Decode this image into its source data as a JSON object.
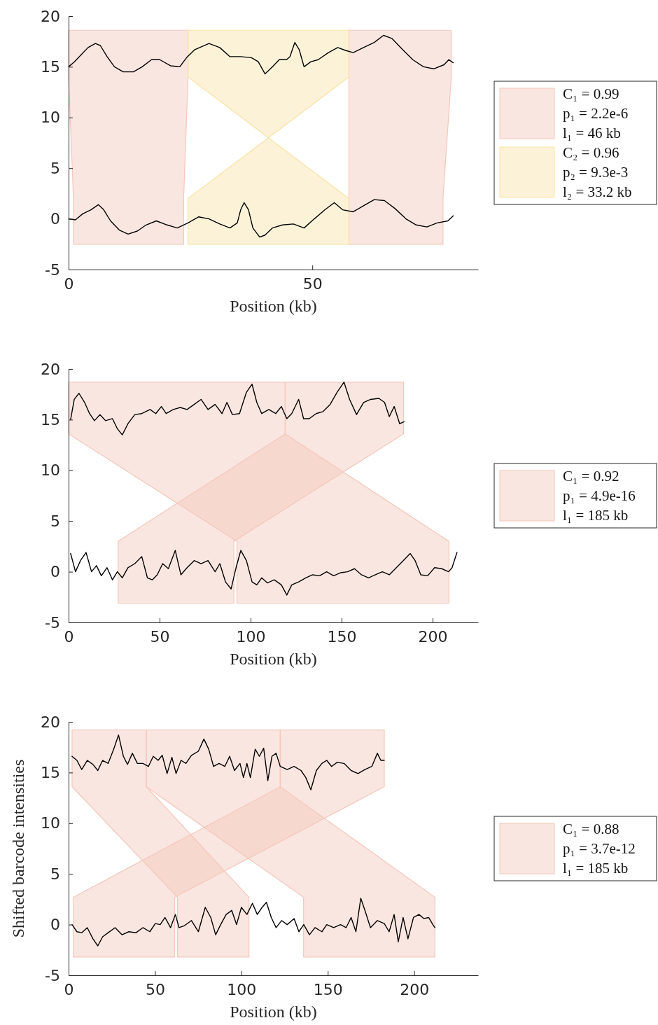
{
  "chart_data": [
    {
      "type": "line",
      "xlabel": "Position (kb)",
      "xlim": [
        0,
        84
      ],
      "xticks": [
        0,
        50
      ],
      "ylim": [
        -5,
        20
      ],
      "yticks": [
        -5,
        0,
        5,
        10,
        15,
        20
      ],
      "legend": "right",
      "series": [
        {
          "type": "area",
          "name": "C₁ = 0.99\np₁ = 2.2e-6\nl₁ = 46 kb",
          "color": "#f4c7bb",
          "x": [
            0,
            24.5,
            24.5,
            23.6,
            23.6,
            1,
            1,
            0
          ],
          "values": [
            18.6,
            18.6,
            14,
            2,
            -2.5,
            -2.5,
            2,
            14
          ]
        },
        {
          "type": "area",
          "color": "#f4c7bb",
          "x": [
            57.5,
            78.5,
            78.5,
            76.8,
            76.8,
            57.5,
            57.5,
            57.5
          ],
          "values": [
            18.6,
            18.6,
            14,
            2,
            -2.5,
            -2.5,
            2,
            14
          ]
        },
        {
          "type": "area",
          "name": "C₂ = 0.96\np₂ = 9.3e-3\nl₂ = 33.2 kb",
          "color": "#f9e3a6",
          "x": [
            24.5,
            57.5,
            57.5,
            24.5,
            24.5,
            57.5,
            57.5,
            24.5
          ],
          "values": [
            18.6,
            18.6,
            14,
            2,
            -2.5,
            -2.5,
            2,
            14
          ]
        },
        {
          "color": "#000000",
          "x": [
            0,
            1.2,
            2.6,
            4.0,
            5.5,
            6.5,
            7.9,
            9.4,
            11.2,
            13.3,
            15.1,
            17.0,
            18.7,
            20.9,
            22.8,
            24.2,
            25.9,
            28.8,
            31.0,
            33.1,
            35.3,
            37.5,
            38.9,
            40.3,
            41.8,
            43.2,
            44.7,
            45.4,
            46.4,
            47.3,
            48.3,
            49.7,
            51.2,
            53.3,
            55.2,
            56.9,
            58.4,
            60.5,
            62.7,
            64.6,
            66.3,
            68.5,
            70.6,
            72.8,
            74.9,
            77.0,
            78.0,
            78.9
          ],
          "values": [
            15.0,
            15.5,
            16.2,
            16.9,
            17.3,
            17.1,
            16.0,
            15.0,
            14.5,
            14.5,
            15.0,
            15.7,
            15.7,
            15.1,
            15.0,
            15.9,
            16.7,
            17.3,
            16.9,
            16.0,
            16.0,
            15.9,
            15.5,
            14.3,
            15.0,
            15.7,
            15.7,
            16.0,
            17.4,
            16.7,
            15.0,
            15.5,
            15.7,
            16.4,
            16.9,
            16.6,
            16.4,
            16.9,
            17.4,
            18.1,
            17.8,
            16.7,
            15.7,
            15.0,
            14.8,
            15.2,
            15.7,
            15.4
          ]
        },
        {
          "color": "#000000",
          "x": [
            0,
            1.4,
            2.9,
            4.6,
            6.1,
            7.2,
            8.6,
            10.4,
            12.2,
            14.1,
            15.9,
            18.0,
            20.2,
            22.3,
            24.5,
            26.7,
            28.8,
            31.0,
            33.1,
            34.6,
            35.3,
            36.0,
            36.9,
            37.8,
            39.2,
            40.3,
            41.8,
            43.9,
            46.1,
            48.3,
            50.4,
            52.6,
            54.5,
            56.2,
            58.4,
            60.5,
            62.7,
            64.8,
            67.0,
            69.2,
            71.3,
            73.5,
            75.6,
            77.8,
            78.9
          ],
          "values": [
            0,
            -0.1,
            0.5,
            0.9,
            1.4,
            0.9,
            -0.2,
            -1.1,
            -1.5,
            -1.2,
            -0.6,
            -0.2,
            -0.6,
            -0.9,
            -0.4,
            0.2,
            0,
            -0.5,
            -0.9,
            -0.4,
            0.9,
            1.6,
            0.9,
            -0.9,
            -1.8,
            -1.6,
            -0.9,
            -0.6,
            -0.5,
            -0.9,
            0,
            0.9,
            1.6,
            0.9,
            0.7,
            1.3,
            1.9,
            1.8,
            1.0,
            0,
            -0.6,
            -0.8,
            -0.4,
            -0.2,
            0.3
          ]
        }
      ]
    },
    {
      "type": "line",
      "xlabel": "Position (kb)",
      "xlim": [
        0,
        225
      ],
      "xticks": [
        0,
        50,
        100,
        150,
        200
      ],
      "ylim": [
        -5,
        20
      ],
      "yticks": [
        -5,
        0,
        5,
        10,
        15,
        20
      ],
      "legend": "right",
      "series": [
        {
          "type": "area",
          "name": "C₁ = 0.92\np₁ = 4.9e-16\nl₁ = 185 kb",
          "color": "#f4c7bb",
          "x": [
            0,
            119,
            119,
            209,
            209,
            92.5,
            92.5,
            0
          ],
          "values": [
            18.7,
            18.7,
            13.6,
            3,
            -3.1,
            -3.1,
            3,
            13.6
          ]
        },
        {
          "type": "area",
          "color": "#f4c7bb",
          "x": [
            119,
            184,
            184,
            90.8,
            90.8,
            27.2,
            27.2,
            119
          ],
          "values": [
            18.7,
            18.7,
            13.6,
            3,
            -3.1,
            -3.1,
            3,
            13.6
          ]
        },
        {
          "color": "#000000",
          "x": [
            1.1,
            3.1,
            5.7,
            8.8,
            11.5,
            14.2,
            17.2,
            20.3,
            24.1,
            26.8,
            29.5,
            32.6,
            36.4,
            40.2,
            44.8,
            47.9,
            51.0,
            53.6,
            57.5,
            61.3,
            65.1,
            69.0,
            72.8,
            76.6,
            80.5,
            84.3,
            87.0,
            90.0,
            93.9,
            97.7,
            100.8,
            103.4,
            106.1,
            110.0,
            113.8,
            116.9,
            119.9,
            122.6,
            126.4,
            129.1,
            132.2,
            136.0,
            139.8,
            143.7,
            147.5,
            151.3,
            154.4,
            158.2,
            162.1,
            165.9,
            170.5,
            173.6,
            176.2,
            178.9,
            181.9,
            184.3
          ],
          "values": [
            15,
            17.0,
            17.6,
            16.7,
            15.6,
            14.9,
            15.5,
            14.9,
            15.1,
            14.1,
            13.5,
            14.6,
            15.5,
            15.6,
            16.0,
            15.6,
            16.3,
            15.6,
            16.0,
            16.2,
            16.0,
            16.5,
            17.0,
            16.0,
            16.5,
            15.6,
            16.7,
            15.5,
            15.6,
            17.7,
            18.5,
            16.7,
            15.6,
            16.0,
            15.6,
            16.3,
            15.1,
            15.6,
            17.0,
            15.1,
            15.1,
            15.6,
            15.8,
            16.5,
            17.7,
            18.7,
            17.0,
            15.5,
            16.7,
            17.0,
            17.1,
            16.7,
            15.3,
            16.3,
            14.6,
            14.8
          ]
        },
        {
          "color": "#000000",
          "x": [
            1.1,
            3.8,
            6.5,
            9.6,
            12.6,
            15.3,
            18.0,
            21.1,
            24.1,
            26.8,
            29.5,
            32.6,
            36.4,
            40.2,
            43.3,
            46.0,
            48.7,
            51.7,
            54.8,
            58.6,
            61.7,
            65.1,
            69.0,
            72.8,
            76.6,
            80.5,
            83.1,
            86.2,
            89.3,
            92.0,
            94.6,
            97.7,
            100.8,
            103.4,
            106.1,
            109.2,
            113.0,
            116.9,
            119.9,
            122.6,
            126.4,
            130.3,
            134.1,
            137.9,
            141.8,
            145.6,
            149.4,
            153.3,
            157.1,
            160.9,
            164.8,
            168.6,
            172.4,
            176.2,
            180.1,
            183.9,
            187.7,
            190.4,
            193.5,
            197.3,
            201.1,
            205.0,
            208.8,
            210.7,
            213.4
          ],
          "values": [
            1.8,
            0,
            1.1,
            1.9,
            0,
            0.6,
            -0.4,
            0.4,
            -0.8,
            0,
            -0.6,
            0.4,
            0.8,
            1.5,
            -0.6,
            -0.8,
            -0.3,
            0.8,
            0.3,
            2.1,
            -0.3,
            0.4,
            1.1,
            0.8,
            1.1,
            0,
            0.8,
            -1.0,
            -1.7,
            0.4,
            2.1,
            1.1,
            -1.0,
            -1.3,
            -0.6,
            -1.1,
            -0.8,
            -1.3,
            -2.3,
            -1.3,
            -1.0,
            -0.6,
            -0.3,
            -0.4,
            0,
            -0.4,
            -0.1,
            0,
            0.3,
            -0.3,
            -0.6,
            -0.3,
            0,
            -0.3,
            0.4,
            1.1,
            1.8,
            1.1,
            -0.3,
            -0.4,
            0.4,
            0.3,
            0,
            0.4,
            1.9
          ]
        }
      ]
    },
    {
      "type": "line",
      "xlabel": "Position (kb)",
      "ylabel": "Shifted barcode intensities",
      "xlim": [
        0,
        237
      ],
      "xticks": [
        0,
        50,
        100,
        150,
        200
      ],
      "ylim": [
        -5,
        20
      ],
      "yticks": [
        -5,
        0,
        5,
        10,
        15,
        20
      ],
      "legend": "right",
      "series": [
        {
          "type": "area",
          "name": "C₁ = 0.88\np₁ = 3.7e-12\nl₁ = 185 kb",
          "color": "#f4c7bb",
          "x": [
            2,
            45,
            45,
            104.4,
            104.4,
            63,
            63,
            2
          ],
          "values": [
            19.2,
            19.2,
            13.6,
            2.7,
            -3.2,
            -3.2,
            2.7,
            13.6
          ]
        },
        {
          "type": "area",
          "color": "#f4c7bb",
          "x": [
            45,
            122.5,
            122.5,
            212,
            212,
            136,
            136,
            45
          ],
          "values": [
            19.2,
            19.2,
            13.6,
            2.7,
            -3.2,
            -3.2,
            2.7,
            13.6
          ]
        },
        {
          "type": "area",
          "color": "#f4c7bb",
          "x": [
            122.5,
            182.7,
            182.7,
            61.4,
            61.4,
            2.8,
            2.8,
            122.5
          ],
          "values": [
            19.2,
            19.2,
            13.6,
            2.7,
            -3.2,
            -3.2,
            2.7,
            13.6
          ]
        },
        {
          "color": "#000000",
          "x": [
            2.0,
            4.8,
            7.6,
            10.8,
            14.1,
            16.9,
            19.7,
            22.9,
            26.1,
            28.9,
            31.7,
            34.1,
            36.9,
            39.8,
            43.0,
            46.2,
            49.0,
            51.8,
            54.2,
            57.0,
            59.8,
            62.2,
            65.1,
            67.9,
            71.1,
            75.1,
            78.3,
            81.1,
            83.9,
            87.1,
            90.4,
            93.2,
            96.0,
            99.2,
            101.2,
            103.2,
            105.2,
            108.0,
            110.4,
            112.9,
            115.3,
            117.7,
            120.1,
            122.5,
            126.5,
            130.5,
            134.5,
            137.3,
            140.2,
            143.4,
            146.6,
            149.4,
            152.2,
            155.4,
            159.4,
            163.5,
            167.5,
            171.5,
            175.5,
            178.7,
            180.7,
            182.7
          ],
          "values": [
            16.6,
            16.2,
            15.3,
            16.2,
            15.8,
            15.2,
            16.2,
            15.9,
            17.3,
            18.7,
            16.6,
            15.8,
            16.9,
            15.9,
            15.9,
            15.6,
            16.6,
            16.2,
            16.7,
            14.9,
            16.5,
            14.9,
            16.2,
            15.9,
            16.7,
            17.1,
            18.3,
            17.3,
            15.6,
            15.9,
            15.6,
            16.6,
            15.2,
            15.9,
            14.5,
            15.9,
            14.5,
            17.3,
            16.6,
            17.4,
            14.2,
            16.6,
            16.9,
            15.6,
            15.3,
            15.6,
            15.2,
            14.5,
            13.3,
            15.2,
            15.9,
            16.2,
            15.6,
            16.0,
            15.9,
            15.2,
            14.9,
            15.3,
            15.6,
            16.9,
            16.2,
            16.2
          ]
        },
        {
          "color": "#000000",
          "x": [
            2.0,
            4.8,
            7.6,
            10.8,
            14.1,
            16.9,
            19.7,
            22.9,
            26.9,
            30.9,
            34.9,
            39.0,
            43.0,
            47.0,
            50.2,
            53.0,
            55.8,
            59.0,
            61.8,
            63.9,
            67.1,
            71.1,
            75.1,
            79.1,
            82.3,
            85.1,
            88.0,
            91.2,
            94.4,
            97.2,
            100.0,
            103.2,
            106.4,
            109.2,
            112.0,
            114.5,
            117.3,
            120.1,
            123.3,
            126.5,
            130.5,
            133.3,
            136.1,
            139.4,
            142.6,
            146.6,
            149.4,
            153.4,
            157.4,
            160.6,
            163.5,
            166.3,
            169.1,
            171.5,
            174.7,
            178.7,
            182.7,
            185.5,
            188.4,
            190.8,
            193.6,
            196.4,
            199.6,
            202.8,
            205.6,
            208.4,
            210.8,
            212.0
          ],
          "values": [
            0,
            -0.7,
            -0.8,
            -0.3,
            -1.4,
            -2.1,
            -1.2,
            -0.8,
            -0.3,
            -1.0,
            -0.7,
            -0.8,
            -0.3,
            -0.7,
            0.1,
            0,
            0.7,
            -0.3,
            1.0,
            -0.3,
            -0.1,
            0.4,
            -0.7,
            1.7,
            0.7,
            -1.0,
            0,
            1.0,
            1.4,
            0,
            1.7,
            1.0,
            2.1,
            1.0,
            1.7,
            2.2,
            0.7,
            -0.3,
            0.4,
            0,
            0.6,
            -0.7,
            0,
            -1.0,
            -0.3,
            -0.7,
            0,
            -0.3,
            0,
            -0.3,
            0.7,
            -0.7,
            2.6,
            1.4,
            -0.3,
            0.4,
            0.1,
            -0.7,
            1.0,
            -1.7,
            0.7,
            -1.4,
            0.7,
            1.0,
            0.6,
            0.7,
            0,
            -0.3
          ]
        }
      ]
    }
  ]
}
